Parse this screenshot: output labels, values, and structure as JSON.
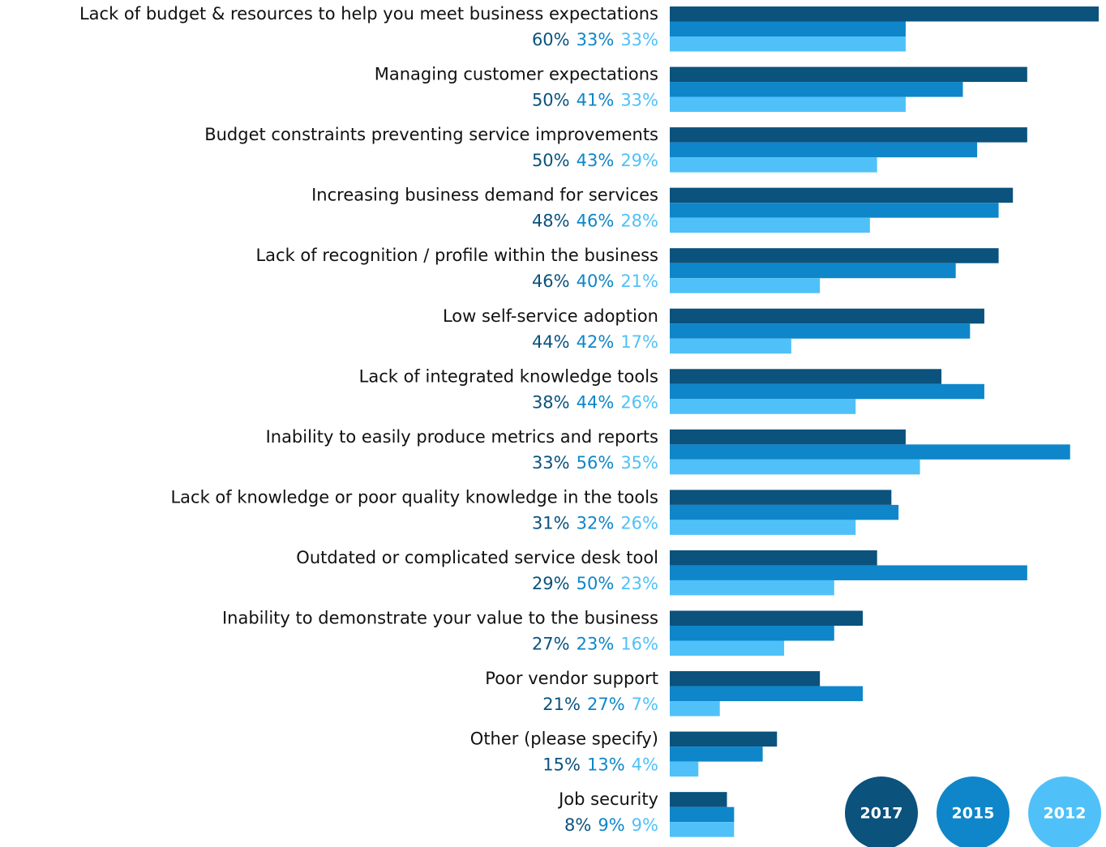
{
  "chart_data": {
    "type": "bar",
    "orientation": "horizontal",
    "categories": [
      "Lack of budget & resources to help you meet business expectations",
      "Managing customer expectations",
      "Budget constraints preventing service improvements",
      "Increasing business demand for services",
      "Lack of recognition / profile within the business",
      "Low self-service adoption",
      "Lack of integrated knowledge tools",
      "Inability to easily produce metrics and reports",
      "Lack of knowledge or poor quality knowledge in the tools",
      "Outdated or complicated service desk tool",
      "Inability to demonstrate your value to the business",
      "Poor vendor support",
      "Other (please specify)",
      "Job security"
    ],
    "series": [
      {
        "name": "2017",
        "color": "#0b527d",
        "values": [
          60,
          50,
          50,
          48,
          46,
          44,
          38,
          33,
          31,
          29,
          27,
          21,
          15,
          8
        ],
        "value_labels": [
          "60%",
          "50%",
          "50%",
          "48%",
          "46%",
          "44%",
          "38%",
          "33%",
          "31%",
          "29%",
          "27%",
          "21%",
          "15%",
          "8%"
        ]
      },
      {
        "name": "2015",
        "color": "#0e86c9",
        "values": [
          33,
          41,
          43,
          46,
          40,
          42,
          44,
          56,
          32,
          50,
          23,
          27,
          13,
          9
        ],
        "value_labels": [
          "33%",
          "41%",
          "43%",
          "46%",
          "40%",
          "42%",
          "44%",
          "56%",
          "32%",
          "50%",
          "23%",
          "27%",
          "13%",
          "9%"
        ]
      },
      {
        "name": "2012",
        "color": "#4fc1f8",
        "values": [
          33,
          33,
          29,
          28,
          21,
          17,
          26,
          35,
          26,
          23,
          16,
          7,
          4,
          9
        ],
        "value_labels": [
          "33%",
          "33%",
          "29%",
          "28%",
          "21%",
          "17%",
          "26%",
          "35%",
          "26%",
          "23%",
          "16%",
          "7%",
          "4%",
          "9%"
        ]
      }
    ],
    "legend": "bottom-right"
  }
}
